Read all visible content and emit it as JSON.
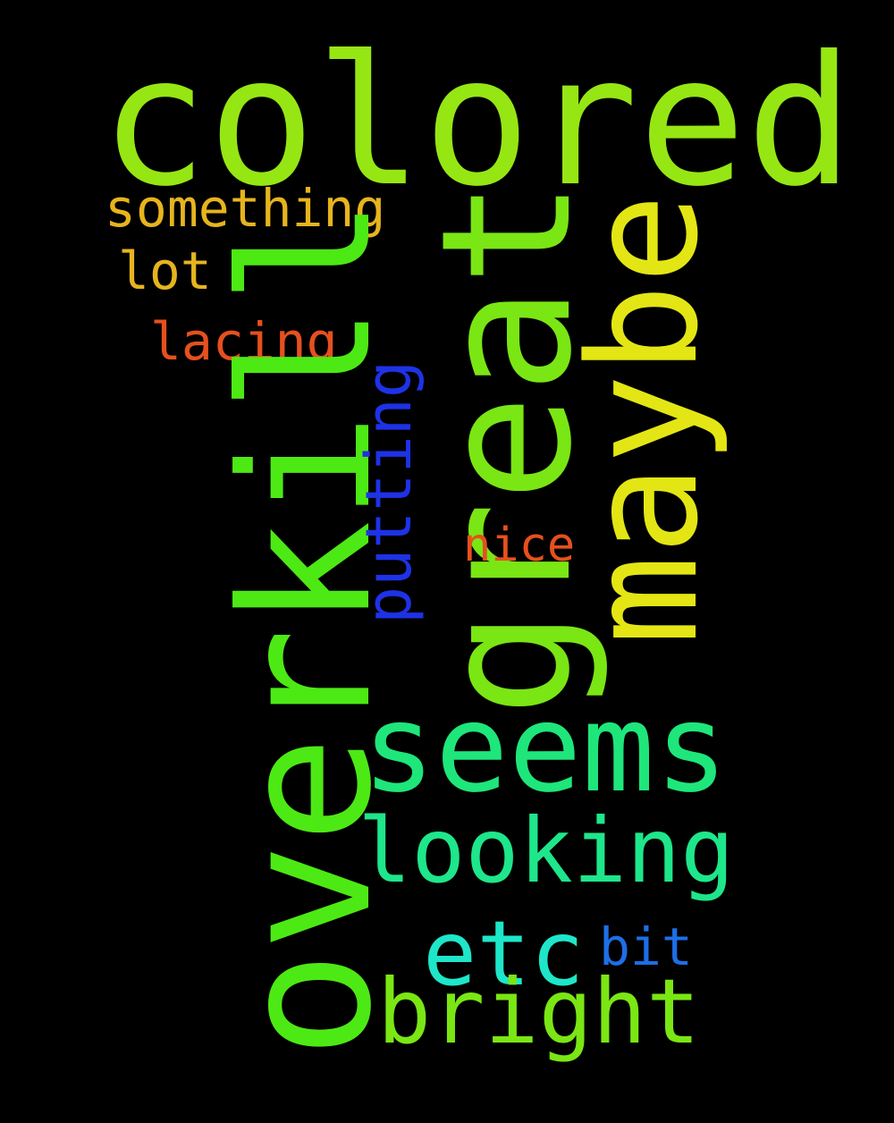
{
  "wordcloud": {
    "words": [
      {
        "key": "colored",
        "text": "colored",
        "color": "#96E614",
        "orientation": "horizontal"
      },
      {
        "key": "overkill",
        "text": "overkill",
        "color": "#4DE914",
        "orientation": "vertical"
      },
      {
        "key": "great",
        "text": "great",
        "color": "#7AE614",
        "orientation": "vertical"
      },
      {
        "key": "maybe",
        "text": "maybe",
        "color": "#E3E614",
        "orientation": "vertical"
      },
      {
        "key": "seems",
        "text": "seems",
        "color": "#1EE67A",
        "orientation": "horizontal"
      },
      {
        "key": "looking",
        "text": "looking",
        "color": "#1EE68A",
        "orientation": "horizontal"
      },
      {
        "key": "bright",
        "text": "bright",
        "color": "#7AE614",
        "orientation": "horizontal"
      },
      {
        "key": "etc",
        "text": "etc",
        "color": "#1EE6C8",
        "orientation": "horizontal"
      },
      {
        "key": "something",
        "text": "something",
        "color": "#E6B41E",
        "orientation": "horizontal"
      },
      {
        "key": "lot",
        "text": "lot",
        "color": "#E6B41E",
        "orientation": "horizontal"
      },
      {
        "key": "lacing",
        "text": "lacing",
        "color": "#E6501E",
        "orientation": "horizontal"
      },
      {
        "key": "putting",
        "text": "putting",
        "color": "#1E32E6",
        "orientation": "vertical"
      },
      {
        "key": "nice",
        "text": "nice",
        "color": "#E6501E",
        "orientation": "horizontal"
      },
      {
        "key": "bit",
        "text": "bit",
        "color": "#1E6EE6",
        "orientation": "horizontal"
      }
    ]
  },
  "colors": {
    "background": "#000000"
  }
}
